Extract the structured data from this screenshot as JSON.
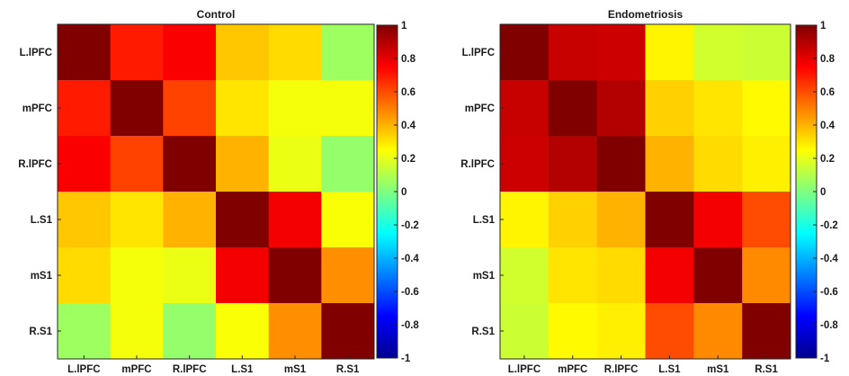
{
  "chart_data": [
    {
      "type": "heatmap",
      "title": "Control",
      "row_labels": [
        "L.lPFC",
        "mPFC",
        "R.lPFC",
        "L.S1",
        "mS1",
        "R.S1"
      ],
      "col_labels": [
        "L.lPFC",
        "mPFC",
        "R.lPFC",
        "L.S1",
        "mS1",
        "R.S1"
      ],
      "values": [
        [
          1.0,
          0.7,
          0.76,
          0.36,
          0.32,
          0.06
        ],
        [
          0.7,
          1.0,
          0.62,
          0.3,
          0.23,
          0.23
        ],
        [
          0.76,
          0.62,
          1.0,
          0.4,
          0.21,
          0.04
        ],
        [
          0.36,
          0.3,
          0.4,
          1.0,
          0.77,
          0.24
        ],
        [
          0.32,
          0.23,
          0.21,
          0.77,
          1.0,
          0.47
        ],
        [
          0.06,
          0.23,
          0.04,
          0.24,
          0.47,
          1.0
        ]
      ],
      "colorbar": {
        "colormap": "jet",
        "limits": [
          -1,
          1
        ],
        "ticks": [
          "1",
          "0.8",
          "0.6",
          "0.4",
          "0.2",
          "0",
          "-0.2",
          "-0.4",
          "-0.6",
          "-0.8",
          "-1"
        ]
      }
    },
    {
      "type": "heatmap",
      "title": "Endometriosis",
      "row_labels": [
        "L.lPFC",
        "mPFC",
        "R.lPFC",
        "L.S1",
        "mS1",
        "R.S1"
      ],
      "col_labels": [
        "L.lPFC",
        "mPFC",
        "R.lPFC",
        "L.S1",
        "mS1",
        "R.S1"
      ],
      "values": [
        [
          1.0,
          0.86,
          0.85,
          0.27,
          0.16,
          0.15
        ],
        [
          0.86,
          1.0,
          0.9,
          0.34,
          0.3,
          0.26
        ],
        [
          0.85,
          0.9,
          1.0,
          0.4,
          0.32,
          0.28
        ],
        [
          0.27,
          0.34,
          0.4,
          1.0,
          0.77,
          0.6
        ],
        [
          0.16,
          0.3,
          0.32,
          0.77,
          1.0,
          0.48
        ],
        [
          0.15,
          0.26,
          0.28,
          0.6,
          0.48,
          1.0
        ]
      ],
      "colorbar": {
        "colormap": "jet",
        "limits": [
          -1,
          1
        ],
        "ticks": [
          "1",
          "0.8",
          "0.6",
          "0.4",
          "0.2",
          "0",
          "-0.2",
          "-0.4",
          "-0.6",
          "-0.8",
          "-1"
        ]
      }
    }
  ]
}
